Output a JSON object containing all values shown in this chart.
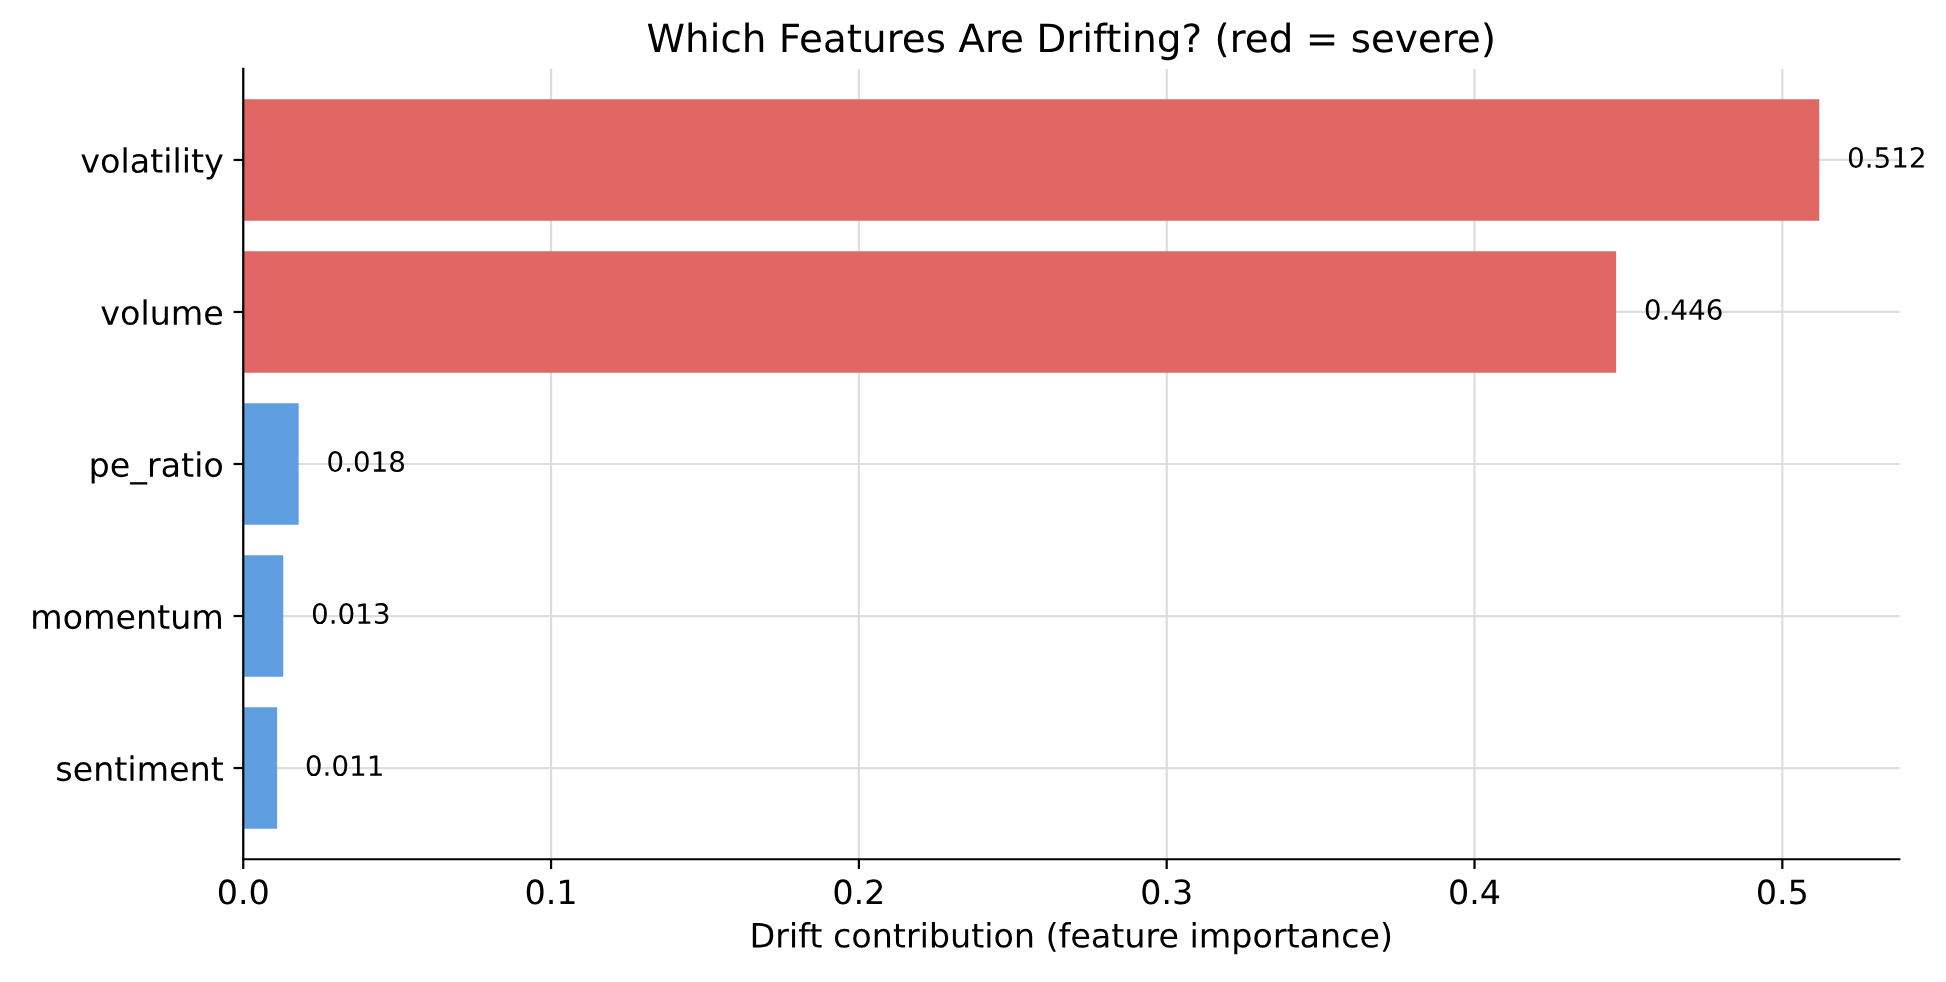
{
  "chart_data": {
    "type": "bar",
    "orientation": "horizontal",
    "title": "Which Features Are Drifting? (red = severe)",
    "xlabel": "Drift contribution (feature importance)",
    "categories": [
      "volatility",
      "volume",
      "pe_ratio",
      "momentum",
      "sentiment"
    ],
    "values": [
      0.512,
      0.446,
      0.018,
      0.013,
      0.011
    ],
    "colors": [
      "#e06763",
      "#e06763",
      "#5f9ee0",
      "#5f9ee0",
      "#5f9ee0"
    ],
    "xlim": [
      0,
      0.538
    ],
    "xticks": [
      {
        "value": 0,
        "label": "0.0"
      },
      0.1,
      0.2,
      0.3,
      0.4,
      0.5
    ],
    "grid": true,
    "data_labels": true
  }
}
